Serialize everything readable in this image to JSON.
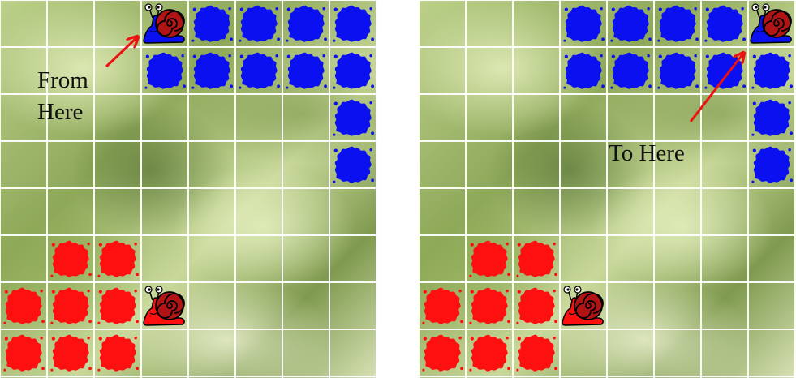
{
  "colors": {
    "blue_splat": "#0a10f0",
    "red_splat": "#ff1010",
    "arrow": "#ee1111",
    "grid_line": "#ffffff",
    "snail_shell": "#b01414"
  },
  "boards": {
    "left": {
      "label": "From\nHere",
      "blue_splats": [
        [
          0,
          4
        ],
        [
          0,
          5
        ],
        [
          0,
          6
        ],
        [
          0,
          7
        ],
        [
          1,
          3
        ],
        [
          1,
          4
        ],
        [
          1,
          5
        ],
        [
          1,
          6
        ],
        [
          1,
          7
        ],
        [
          2,
          7
        ],
        [
          3,
          7
        ]
      ],
      "red_splats": [
        [
          5,
          1
        ],
        [
          5,
          2
        ],
        [
          6,
          0
        ],
        [
          6,
          1
        ],
        [
          6,
          2
        ],
        [
          7,
          0
        ],
        [
          7,
          1
        ],
        [
          7,
          2
        ]
      ],
      "blue_snail": [
        0,
        3
      ],
      "red_snail": [
        6,
        3
      ]
    },
    "right": {
      "label": "To Here",
      "blue_splats": [
        [
          0,
          3
        ],
        [
          0,
          4
        ],
        [
          0,
          5
        ],
        [
          0,
          6
        ],
        [
          1,
          3
        ],
        [
          1,
          4
        ],
        [
          1,
          5
        ],
        [
          1,
          6
        ],
        [
          1,
          7
        ],
        [
          2,
          7
        ],
        [
          3,
          7
        ]
      ],
      "red_splats": [
        [
          5,
          1
        ],
        [
          5,
          2
        ],
        [
          6,
          0
        ],
        [
          6,
          1
        ],
        [
          6,
          2
        ],
        [
          7,
          0
        ],
        [
          7,
          1
        ],
        [
          7,
          2
        ]
      ],
      "blue_snail": [
        0,
        7
      ],
      "red_snail": [
        6,
        3
      ]
    }
  }
}
